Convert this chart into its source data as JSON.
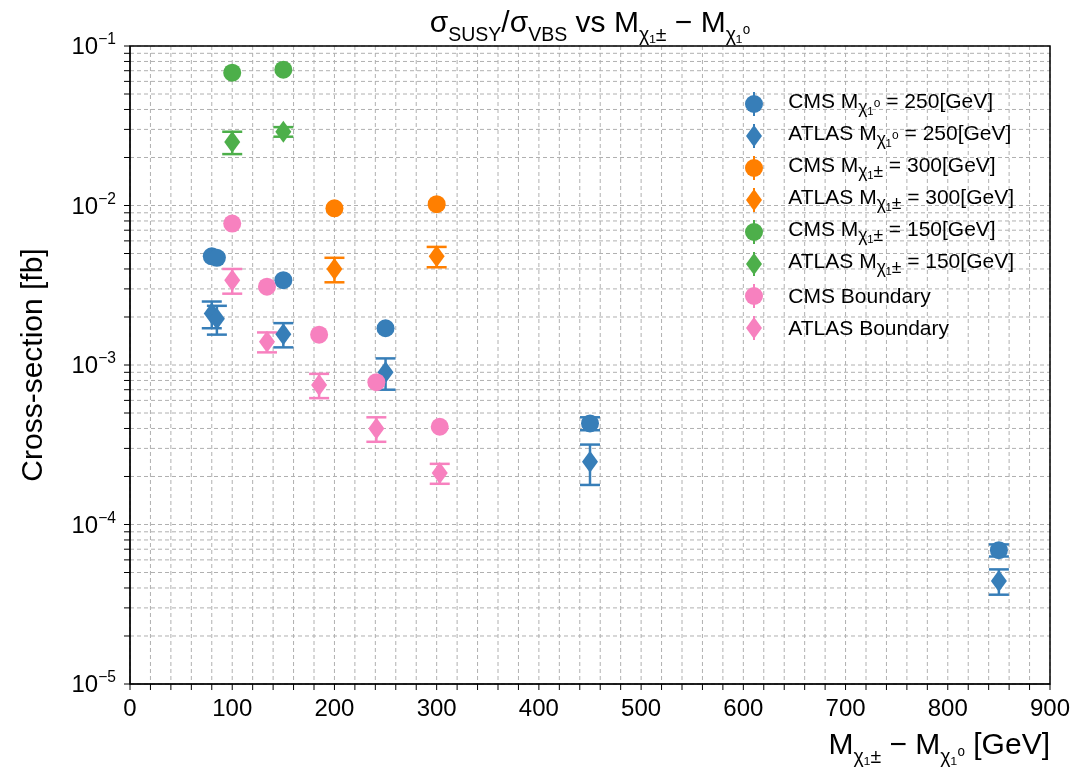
{
  "chart_data": {
    "type": "scatter",
    "title": "σ$_{SUSY}$/σ$_{VBS}$ vs M$_{χ₁±}$ − M$_{χ₁⁰}$",
    "xlabel": "M$_{χ₁±}$ − M$_{χ₁⁰}$ [GeV]",
    "ylabel": "Cross-section [fb]",
    "log": "y",
    "grid": true,
    "legend": "top right",
    "xlim": [
      0,
      900
    ],
    "xticks": [
      0,
      {
        "value": 20,
        "label": null
      },
      {
        "value": 40,
        "label": null
      },
      {
        "value": 60,
        "label": null
      },
      {
        "value": 80,
        "label": null
      },
      100,
      {
        "value": 120,
        "label": null
      },
      {
        "value": 140,
        "label": null
      },
      {
        "value": 160,
        "label": null
      },
      {
        "value": 180,
        "label": null
      },
      200,
      {
        "value": 220,
        "label": null
      },
      {
        "value": 240,
        "label": null
      },
      {
        "value": 260,
        "label": null
      },
      {
        "value": 280,
        "label": null
      },
      300,
      {
        "value": 320,
        "label": null
      },
      {
        "value": 340,
        "label": null
      },
      {
        "value": 360,
        "label": null
      },
      {
        "value": 380,
        "label": null
      },
      400,
      {
        "value": 420,
        "label": null
      },
      {
        "value": 440,
        "label": null
      },
      {
        "value": 460,
        "label": null
      },
      {
        "value": 480,
        "label": null
      },
      500,
      {
        "value": 520,
        "label": null
      },
      {
        "value": 540,
        "label": null
      },
      {
        "value": 560,
        "label": null
      },
      {
        "value": 580,
        "label": null
      },
      600,
      {
        "value": 620,
        "label": null
      },
      {
        "value": 640,
        "label": null
      },
      {
        "value": 660,
        "label": null
      },
      {
        "value": 680,
        "label": null
      },
      700,
      {
        "value": 720,
        "label": null
      },
      {
        "value": 740,
        "label": null
      },
      {
        "value": 760,
        "label": null
      },
      {
        "value": 780,
        "label": null
      },
      800,
      {
        "value": 820,
        "label": null
      },
      {
        "value": 840,
        "label": null
      },
      {
        "value": 860,
        "label": null
      },
      {
        "value": 880,
        "label": null
      },
      900
    ],
    "ylim": [
      1e-05,
      0.1
    ],
    "yticks": [
      {
        "value": 1e-05,
        "label": "10$^{−5}$"
      },
      {
        "value": 2e-05,
        "label": null
      },
      {
        "value": 3e-05,
        "label": null
      },
      {
        "value": 4e-05,
        "label": null
      },
      {
        "value": 5e-05,
        "label": null
      },
      {
        "value": 6e-05,
        "label": null
      },
      {
        "value": 7e-05,
        "label": null
      },
      {
        "value": 8e-05,
        "label": null
      },
      {
        "value": 9e-05,
        "label": null
      },
      {
        "value": 0.0001,
        "label": "10$^{−4}$"
      },
      {
        "value": 0.0002,
        "label": null
      },
      {
        "value": 0.0003,
        "label": null
      },
      {
        "value": 0.0004,
        "label": null
      },
      {
        "value": 0.0005,
        "label": null
      },
      {
        "value": 0.0006,
        "label": null
      },
      {
        "value": 0.0007,
        "label": null
      },
      {
        "value": 0.0008,
        "label": null
      },
      {
        "value": 0.0009,
        "label": null
      },
      {
        "value": 0.001,
        "label": "10$^{−3}$"
      },
      {
        "value": 0.002,
        "label": null
      },
      {
        "value": 0.003,
        "label": null
      },
      {
        "value": 0.004,
        "label": null
      },
      {
        "value": 0.005,
        "label": null
      },
      {
        "value": 0.006,
        "label": null
      },
      {
        "value": 0.007,
        "label": null
      },
      {
        "value": 0.008,
        "label": null
      },
      {
        "value": 0.009,
        "label": null
      },
      {
        "value": 0.01,
        "label": "10$^{−2}$"
      },
      {
        "value": 0.02,
        "label": null
      },
      {
        "value": 0.03,
        "label": null
      },
      {
        "value": 0.04,
        "label": null
      },
      {
        "value": 0.05,
        "label": null
      },
      {
        "value": 0.06,
        "label": null
      },
      {
        "value": 0.07,
        "label": null
      },
      {
        "value": 0.08,
        "label": null
      },
      {
        "value": 0.09,
        "label": null
      },
      {
        "value": 0.1,
        "label": "10$^{−1}$"
      }
    ],
    "series": [
      {
        "name": "CMS M$_{χ₁⁰}$ = 250[GeV]",
        "color": "#377eb8",
        "marker": "circle",
        "x": [
          80,
          85,
          150,
          250,
          450,
          850
        ],
        "values": [
          0.0048,
          0.0047,
          0.0034,
          0.0017,
          0.00043,
          6.9e-05
        ],
        "errors": [
          null,
          null,
          null,
          null,
          4e-05,
          6e-06
        ]
      },
      {
        "name": "ATLAS M$_{χ₁⁰}$ = 250[GeV]",
        "color": "#377eb8",
        "marker": "diamond",
        "x": [
          80,
          85,
          150,
          250,
          450,
          850
        ],
        "values": [
          0.0021,
          0.00195,
          0.00156,
          0.0009,
          0.000247,
          4.43e-05
        ],
        "errors": [
          0.0004,
          0.0004,
          0.00027,
          0.0002,
          7e-05,
          8e-06
        ]
      },
      {
        "name": "CMS M$_{χ₁±}$ = 300[GeV]",
        "color": "#ff7f00",
        "marker": "circle",
        "x": [
          200,
          300
        ],
        "values": [
          0.0096,
          0.0102
        ]
      },
      {
        "name": "ATLAS M$_{χ₁±}$ = 300[GeV]",
        "color": "#ff7f00",
        "marker": "diamond",
        "x": [
          200,
          300
        ],
        "values": [
          0.004,
          0.0048
        ],
        "errors": [
          0.0007,
          0.0007
        ]
      },
      {
        "name": "CMS M$_{χ₁±}$ = 150[GeV]",
        "color": "#4daf4a",
        "marker": "circle",
        "x": [
          100,
          150
        ],
        "values": [
          0.068,
          0.071
        ]
      },
      {
        "name": "ATLAS M$_{χ₁±}$ = 150[GeV]",
        "color": "#4daf4a",
        "marker": "diamond",
        "x": [
          100,
          150
        ],
        "values": [
          0.025,
          0.029
        ],
        "errors": [
          0.004,
          0.002
        ]
      },
      {
        "name": "CMS Boundary",
        "color": "#f781bf",
        "marker": "circle",
        "x": [
          100,
          134,
          185,
          241,
          303
        ],
        "values": [
          0.0077,
          0.0031,
          0.00155,
          0.00078,
          0.00041
        ]
      },
      {
        "name": "ATLAS Boundary",
        "color": "#f781bf",
        "marker": "diamond",
        "x": [
          100,
          134,
          185,
          241,
          303
        ],
        "values": [
          0.0034,
          0.0014,
          0.00075,
          0.0004,
          0.00021
        ],
        "errors": [
          0.0006,
          0.0002,
          0.00013,
          7e-05,
          3e-05
        ]
      }
    ]
  }
}
